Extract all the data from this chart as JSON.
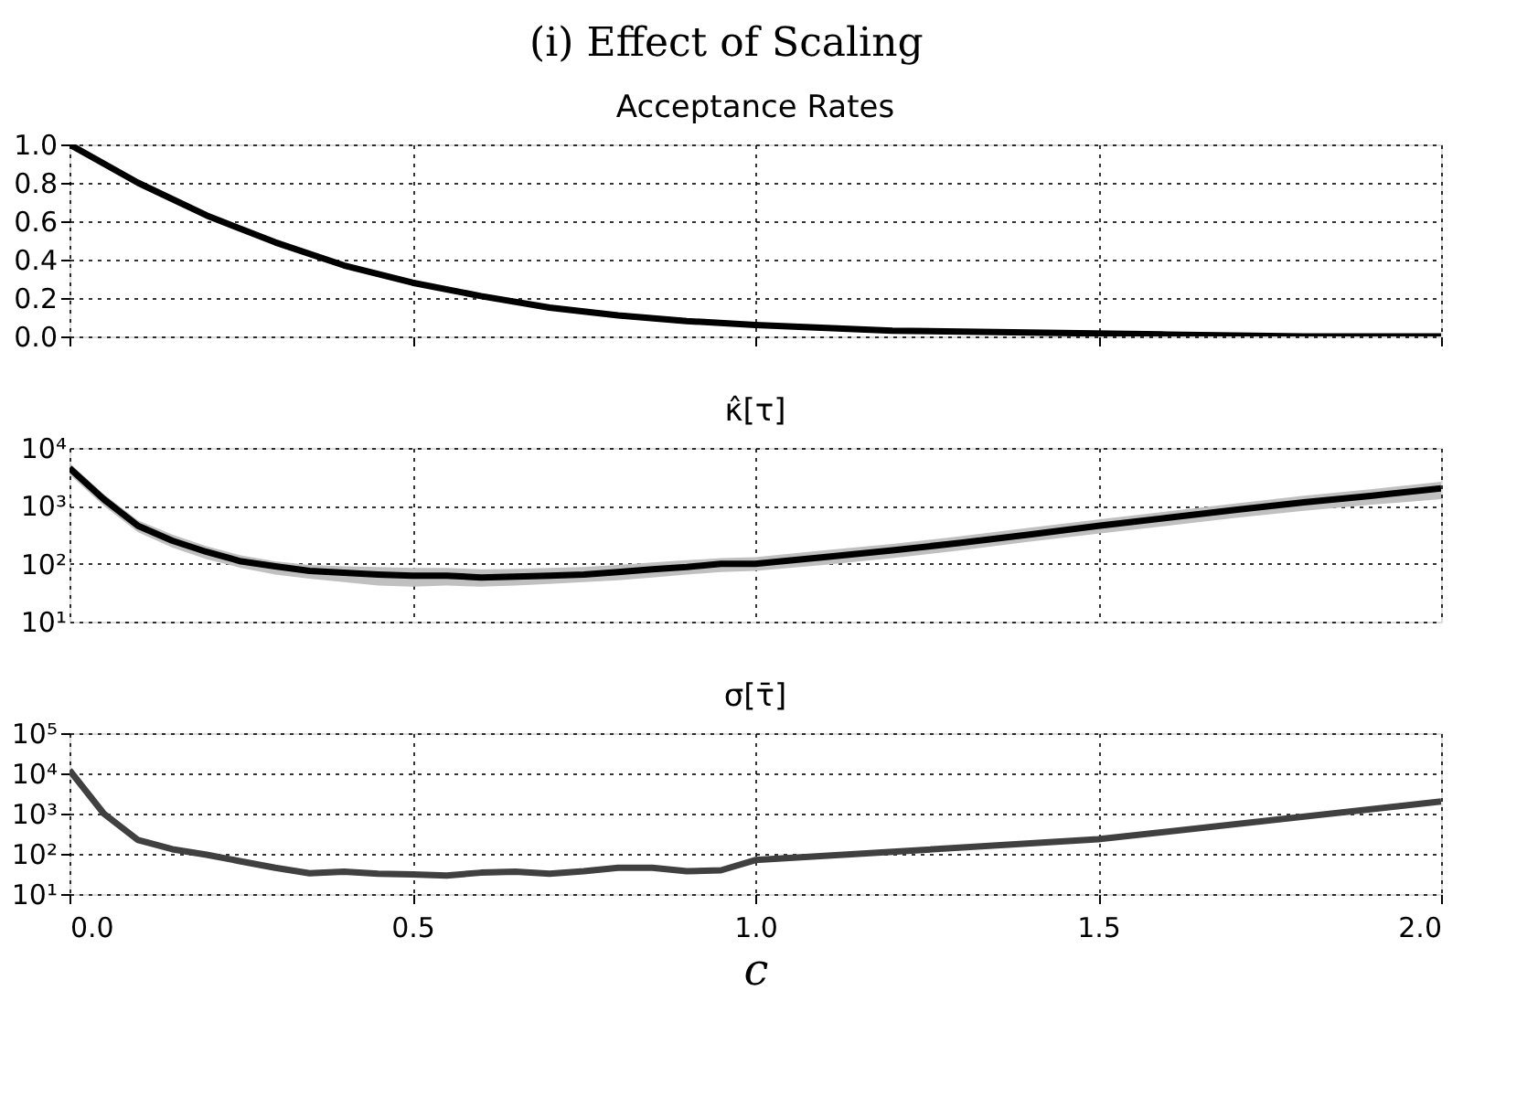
{
  "chart_data": [
    {
      "type": "line",
      "title": "Acceptance Rates",
      "annotations": [
        "(i) Effect of Scaling"
      ],
      "xlim": [
        0,
        2
      ],
      "xticks": [
        0,
        0.5,
        1.0,
        1.5,
        2.0
      ],
      "ylim": [
        0,
        1
      ],
      "yticks": [
        {
          "value": 0,
          "label": "0.0"
        },
        {
          "value": 0.2,
          "label": "0.2"
        },
        {
          "value": 0.4,
          "label": "0.4"
        },
        {
          "value": 0.6,
          "label": "0.6"
        },
        {
          "value": 0.8,
          "label": "0.8"
        },
        {
          "value": 1,
          "label": "1.0"
        }
      ],
      "grid": true,
      "tick_labels": "y",
      "line_style": "solid",
      "marker": "none",
      "x": [
        0,
        0.1,
        0.2,
        0.3,
        0.4,
        0.5,
        0.6,
        0.7,
        0.8,
        0.9,
        1.0,
        1.2,
        1.4,
        1.6,
        1.8,
        2.0
      ],
      "series": [
        {
          "color": "#000000",
          "values": [
            1.0,
            0.8,
            0.63,
            0.49,
            0.37,
            0.28,
            0.21,
            0.15,
            0.11,
            0.08,
            0.06,
            0.03,
            0.02,
            0.01,
            0.0,
            0.0
          ]
        }
      ]
    },
    {
      "type": "line",
      "title": "κ̂[τ]",
      "xlim": [
        0,
        2
      ],
      "xticks": [
        0,
        0.5,
        1.0,
        1.5,
        2.0
      ],
      "log": "y",
      "ylim": [
        10,
        10000
      ],
      "yticks": [
        {
          "value": 10,
          "label": "10¹"
        },
        {
          "value": 100,
          "label": "10²"
        },
        {
          "value": 1000,
          "label": "10³"
        },
        {
          "value": 10000,
          "label": "10⁴"
        }
      ],
      "grid": true,
      "tick_labels": "y",
      "line_style": "solid",
      "marker": "none",
      "x": [
        0,
        0.05,
        0.1,
        0.15,
        0.2,
        0.25,
        0.3,
        0.35,
        0.4,
        0.45,
        0.5,
        0.55,
        0.6,
        0.65,
        0.7,
        0.75,
        0.8,
        0.85,
        0.9,
        0.95,
        1.0,
        1.1,
        1.2,
        1.3,
        1.4,
        1.5,
        1.6,
        1.7,
        1.8,
        1.9,
        2.0
      ],
      "series": [
        {
          "color": "#000000",
          "values": [
            4500,
            1300,
            450,
            250,
            160,
            110,
            90,
            75,
            70,
            65,
            62,
            62,
            58,
            60,
            62,
            65,
            72,
            80,
            88,
            100,
            100,
            130,
            170,
            230,
            320,
            450,
            620,
            850,
            1150,
            1500,
            2000
          ],
          "lower": [
            3500,
            1000,
            350,
            190,
            120,
            85,
            65,
            55,
            48,
            42,
            40,
            42,
            40,
            42,
            45,
            48,
            52,
            58,
            65,
            72,
            75,
            95,
            125,
            170,
            240,
            330,
            450,
            620,
            820,
            1050,
            1300
          ],
          "upper": [
            5500,
            1600,
            560,
            320,
            200,
            140,
            110,
            95,
            90,
            88,
            85,
            85,
            80,
            82,
            85,
            88,
            95,
            105,
            115,
            125,
            130,
            170,
            220,
            300,
            420,
            580,
            800,
            1100,
            1500,
            1950,
            2600
          ]
        }
      ]
    },
    {
      "type": "line",
      "title": "σ[τ̄]",
      "xlabel": "c",
      "xlim": [
        0,
        2
      ],
      "xticks": [
        {
          "value": 0,
          "label": "0.0"
        },
        {
          "value": 0.5,
          "label": "0.5"
        },
        {
          "value": 1.0,
          "label": "1.0"
        },
        {
          "value": 1.5,
          "label": "1.5"
        },
        {
          "value": 2.0,
          "label": "2.0"
        }
      ],
      "log": "y",
      "ylim": [
        10,
        100000
      ],
      "yticks": [
        {
          "value": 10,
          "label": "10¹"
        },
        {
          "value": 100,
          "label": "10²"
        },
        {
          "value": 1000,
          "label": "10³"
        },
        {
          "value": 10000,
          "label": "10⁴"
        },
        {
          "value": 100000,
          "label": "10⁵"
        }
      ],
      "grid": true,
      "line_style": "solid",
      "marker": "none",
      "x": [
        0,
        0.05,
        0.1,
        0.15,
        0.2,
        0.25,
        0.3,
        0.35,
        0.4,
        0.45,
        0.5,
        0.55,
        0.6,
        0.65,
        0.7,
        0.75,
        0.8,
        0.85,
        0.9,
        0.95,
        1.0,
        1.5,
        2.0
      ],
      "series": [
        {
          "color": "#404040",
          "values": [
            12000,
            1000,
            220,
            130,
            95,
            65,
            45,
            33,
            36,
            32,
            31,
            29,
            34,
            36,
            32,
            37,
            45,
            45,
            37,
            39,
            70,
            230,
            2000
          ]
        }
      ]
    }
  ]
}
